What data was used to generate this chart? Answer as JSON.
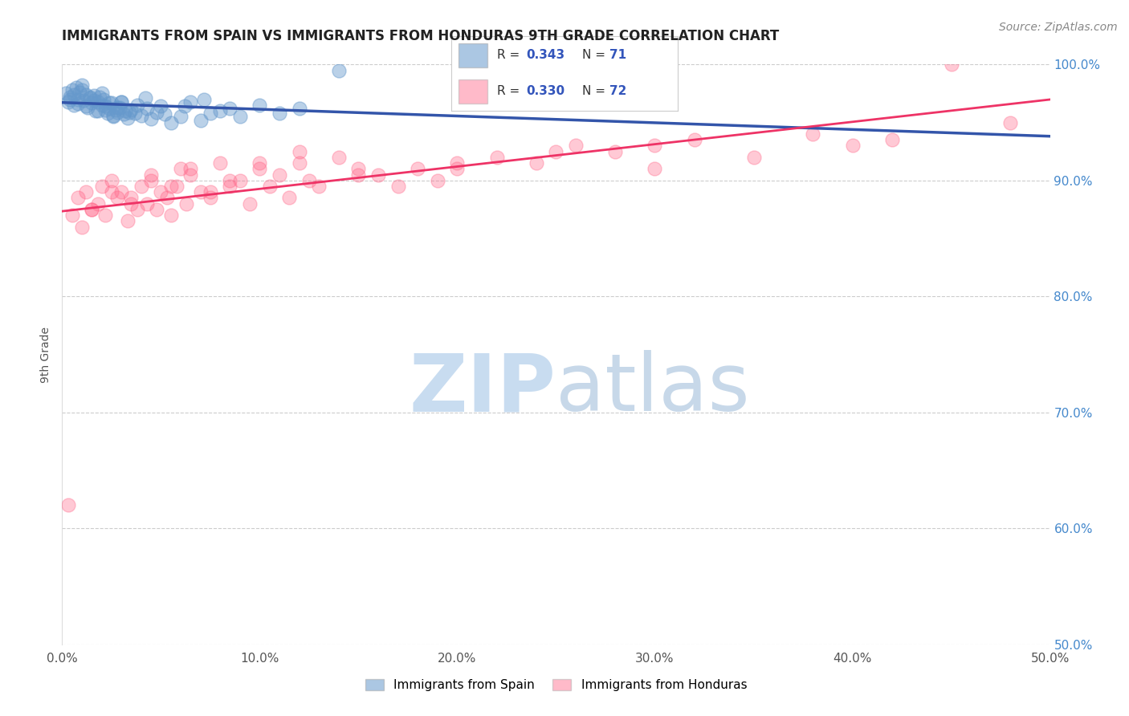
{
  "title": "IMMIGRANTS FROM SPAIN VS IMMIGRANTS FROM HONDURAS 9TH GRADE CORRELATION CHART",
  "source_text": "Source: ZipAtlas.com",
  "ylabel": "9th Grade",
  "xlim": [
    0.0,
    50.0
  ],
  "ylim": [
    50.0,
    100.0
  ],
  "xticks": [
    0.0,
    10.0,
    20.0,
    30.0,
    40.0,
    50.0
  ],
  "yticks_right": [
    50.0,
    60.0,
    70.0,
    80.0,
    90.0,
    100.0
  ],
  "legend_labels": [
    "Immigrants from Spain",
    "Immigrants from Honduras"
  ],
  "blue_color": "#6699CC",
  "pink_color": "#FF6688",
  "blue_line_color": "#3355AA",
  "pink_line_color": "#EE3366",
  "watermark_zip_color": "#C8DCF0",
  "watermark_atlas_color": "#B0C8E0",
  "spain_x": [
    0.2,
    0.3,
    0.4,
    0.5,
    0.6,
    0.7,
    0.8,
    0.9,
    1.0,
    1.1,
    1.2,
    1.3,
    1.4,
    1.5,
    1.6,
    1.7,
    1.8,
    1.9,
    2.0,
    2.1,
    2.2,
    2.3,
    2.4,
    2.5,
    2.6,
    2.7,
    2.8,
    2.9,
    3.0,
    3.1,
    3.2,
    3.3,
    3.5,
    3.7,
    4.0,
    4.3,
    4.5,
    4.8,
    5.0,
    5.5,
    6.0,
    6.5,
    7.0,
    7.5,
    8.0,
    9.0,
    10.0,
    11.0,
    12.0,
    0.4,
    0.6,
    0.8,
    1.0,
    1.2,
    1.4,
    1.6,
    1.8,
    2.0,
    2.2,
    2.4,
    2.6,
    2.8,
    3.0,
    3.4,
    3.8,
    4.2,
    5.2,
    6.2,
    7.2,
    8.5,
    14.0
  ],
  "spain_y": [
    97.5,
    96.8,
    97.2,
    97.8,
    96.5,
    98.0,
    97.0,
    97.6,
    98.2,
    96.9,
    97.4,
    96.3,
    97.1,
    96.7,
    97.3,
    96.0,
    96.8,
    97.2,
    96.5,
    97.0,
    96.4,
    95.8,
    96.2,
    96.7,
    95.5,
    96.1,
    95.9,
    96.3,
    96.8,
    95.7,
    96.0,
    95.4,
    96.1,
    95.8,
    95.6,
    96.2,
    95.3,
    95.9,
    96.4,
    95.0,
    95.5,
    96.8,
    95.2,
    95.8,
    96.0,
    95.5,
    96.5,
    95.8,
    96.2,
    97.0,
    97.4,
    96.6,
    97.8,
    96.4,
    97.2,
    96.9,
    96.0,
    97.5,
    96.1,
    96.7,
    95.6,
    96.3,
    96.8,
    95.9,
    96.5,
    97.1,
    95.7,
    96.4,
    97.0,
    96.2,
    99.5
  ],
  "honduras_x": [
    0.5,
    0.8,
    1.0,
    1.2,
    1.5,
    1.8,
    2.0,
    2.2,
    2.5,
    2.8,
    3.0,
    3.3,
    3.5,
    3.8,
    4.0,
    4.3,
    4.5,
    4.8,
    5.0,
    5.3,
    5.5,
    5.8,
    6.0,
    6.3,
    6.5,
    7.0,
    7.5,
    8.0,
    8.5,
    9.0,
    9.5,
    10.0,
    10.5,
    11.0,
    11.5,
    12.0,
    12.5,
    13.0,
    14.0,
    15.0,
    16.0,
    17.0,
    18.0,
    19.0,
    20.0,
    22.0,
    24.0,
    26.0,
    28.0,
    30.0,
    32.0,
    35.0,
    38.0,
    40.0,
    42.0,
    45.0,
    48.0,
    1.5,
    2.5,
    3.5,
    4.5,
    5.5,
    6.5,
    7.5,
    8.5,
    10.0,
    12.0,
    15.0,
    20.0,
    25.0,
    30.0,
    0.3
  ],
  "honduras_y": [
    87.0,
    88.5,
    86.0,
    89.0,
    87.5,
    88.0,
    89.5,
    87.0,
    90.0,
    88.5,
    89.0,
    86.5,
    88.0,
    87.5,
    89.5,
    88.0,
    90.0,
    87.5,
    89.0,
    88.5,
    87.0,
    89.5,
    91.0,
    88.0,
    90.5,
    89.0,
    88.5,
    91.5,
    89.5,
    90.0,
    88.0,
    91.0,
    89.5,
    90.5,
    88.5,
    91.5,
    90.0,
    89.5,
    92.0,
    91.0,
    90.5,
    89.5,
    91.0,
    90.0,
    91.5,
    92.0,
    91.5,
    93.0,
    92.5,
    91.0,
    93.5,
    92.0,
    94.0,
    93.0,
    93.5,
    100.0,
    95.0,
    87.5,
    89.0,
    88.5,
    90.5,
    89.5,
    91.0,
    89.0,
    90.0,
    91.5,
    92.5,
    90.5,
    91.0,
    92.5,
    93.0,
    62.0
  ]
}
